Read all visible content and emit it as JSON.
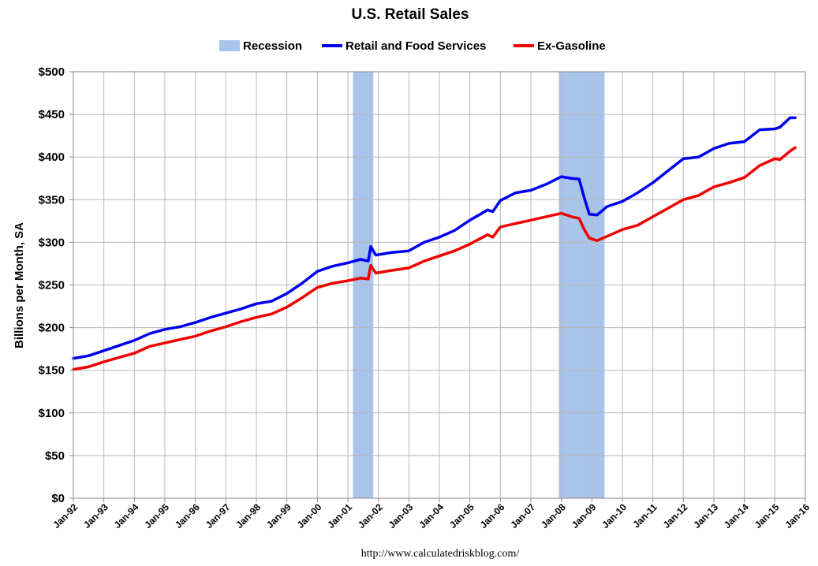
{
  "chart_data": {
    "type": "line",
    "title": "U.S. Retail Sales",
    "ylabel": "Billions per Month, SA",
    "xlabel": "",
    "source": "http://www.calculatedriskblog.com/",
    "ylim": [
      0,
      500
    ],
    "xlim": [
      "1992-01",
      "2016-01"
    ],
    "grid": true,
    "legend_position": "top",
    "y_ticks": [
      "$0",
      "$50",
      "$100",
      "$150",
      "$200",
      "$250",
      "$300",
      "$350",
      "$400",
      "$450",
      "$500"
    ],
    "x_ticks": [
      "Jan-92",
      "Jan-93",
      "Jan-94",
      "Jan-95",
      "Jan-96",
      "Jan-97",
      "Jan-98",
      "Jan-99",
      "Jan-00",
      "Jan-01",
      "Jan-02",
      "Jan-03",
      "Jan-04",
      "Jan-05",
      "Jan-06",
      "Jan-07",
      "Jan-08",
      "Jan-09",
      "Jan-10",
      "Jan-11",
      "Jan-12",
      "Jan-13",
      "Jan-14",
      "Jan-15",
      "Jan-16"
    ],
    "recessions": [
      {
        "start": "2001-03",
        "end": "2001-11"
      },
      {
        "start": "2007-12",
        "end": "2009-06"
      }
    ],
    "legend": [
      {
        "name": "Recession",
        "kind": "box",
        "color": "#a8c4ea"
      },
      {
        "name": "Retail and Food Services",
        "kind": "line",
        "color": "#0000ee"
      },
      {
        "name": "Ex-Gasoline",
        "kind": "line",
        "color": "#ee0000"
      }
    ],
    "series": [
      {
        "name": "Retail and Food Services",
        "color": "#0000ee",
        "points": [
          [
            "1992-01",
            164
          ],
          [
            "1992-07",
            167
          ],
          [
            "1993-01",
            173
          ],
          [
            "1993-07",
            179
          ],
          [
            "1994-01",
            185
          ],
          [
            "1994-07",
            193
          ],
          [
            "1995-01",
            198
          ],
          [
            "1995-07",
            201
          ],
          [
            "1996-01",
            206
          ],
          [
            "1996-07",
            212
          ],
          [
            "1997-01",
            217
          ],
          [
            "1997-07",
            222
          ],
          [
            "1998-01",
            228
          ],
          [
            "1998-07",
            231
          ],
          [
            "1999-01",
            240
          ],
          [
            "1999-07",
            252
          ],
          [
            "2000-01",
            266
          ],
          [
            "2000-07",
            272
          ],
          [
            "2001-01",
            276
          ],
          [
            "2001-06",
            280
          ],
          [
            "2001-09",
            278
          ],
          [
            "2001-10",
            295
          ],
          [
            "2001-12",
            285
          ],
          [
            "2002-06",
            288
          ],
          [
            "2003-01",
            290
          ],
          [
            "2003-07",
            300
          ],
          [
            "2004-01",
            306
          ],
          [
            "2004-07",
            314
          ],
          [
            "2005-01",
            326
          ],
          [
            "2005-08",
            338
          ],
          [
            "2005-10",
            336
          ],
          [
            "2006-01",
            349
          ],
          [
            "2006-07",
            358
          ],
          [
            "2007-01",
            361
          ],
          [
            "2007-07",
            368
          ],
          [
            "2008-01",
            377
          ],
          [
            "2008-05",
            375
          ],
          [
            "2008-08",
            374
          ],
          [
            "2008-10",
            352
          ],
          [
            "2008-12",
            333
          ],
          [
            "2009-03",
            332
          ],
          [
            "2009-07",
            342
          ],
          [
            "2010-01",
            348
          ],
          [
            "2010-07",
            358
          ],
          [
            "2011-01",
            370
          ],
          [
            "2011-07",
            384
          ],
          [
            "2012-01",
            398
          ],
          [
            "2012-07",
            400
          ],
          [
            "2013-01",
            410
          ],
          [
            "2013-07",
            416
          ],
          [
            "2014-01",
            418
          ],
          [
            "2014-07",
            432
          ],
          [
            "2015-01",
            433
          ],
          [
            "2015-03",
            435
          ],
          [
            "2015-07",
            446
          ],
          [
            "2015-09",
            446
          ]
        ]
      },
      {
        "name": "Ex-Gasoline",
        "color": "#ee0000",
        "points": [
          [
            "1992-01",
            151
          ],
          [
            "1992-07",
            154
          ],
          [
            "1993-01",
            160
          ],
          [
            "1993-07",
            165
          ],
          [
            "1994-01",
            170
          ],
          [
            "1994-07",
            178
          ],
          [
            "1995-01",
            182
          ],
          [
            "1995-07",
            186
          ],
          [
            "1996-01",
            190
          ],
          [
            "1996-07",
            196
          ],
          [
            "1997-01",
            201
          ],
          [
            "1997-07",
            207
          ],
          [
            "1998-01",
            212
          ],
          [
            "1998-07",
            216
          ],
          [
            "1999-01",
            224
          ],
          [
            "1999-07",
            235
          ],
          [
            "2000-01",
            247
          ],
          [
            "2000-07",
            252
          ],
          [
            "2001-01",
            255
          ],
          [
            "2001-06",
            258
          ],
          [
            "2001-09",
            257
          ],
          [
            "2001-10",
            273
          ],
          [
            "2001-12",
            264
          ],
          [
            "2002-06",
            267
          ],
          [
            "2003-01",
            270
          ],
          [
            "2003-07",
            278
          ],
          [
            "2004-01",
            284
          ],
          [
            "2004-07",
            290
          ],
          [
            "2005-01",
            298
          ],
          [
            "2005-08",
            309
          ],
          [
            "2005-10",
            306
          ],
          [
            "2006-01",
            318
          ],
          [
            "2006-07",
            322
          ],
          [
            "2007-01",
            326
          ],
          [
            "2007-07",
            330
          ],
          [
            "2008-01",
            334
          ],
          [
            "2008-05",
            330
          ],
          [
            "2008-08",
            328
          ],
          [
            "2008-10",
            315
          ],
          [
            "2008-12",
            305
          ],
          [
            "2009-03",
            302
          ],
          [
            "2009-07",
            307
          ],
          [
            "2010-01",
            315
          ],
          [
            "2010-07",
            320
          ],
          [
            "2011-01",
            330
          ],
          [
            "2011-07",
            340
          ],
          [
            "2012-01",
            350
          ],
          [
            "2012-07",
            355
          ],
          [
            "2013-01",
            365
          ],
          [
            "2013-07",
            370
          ],
          [
            "2014-01",
            376
          ],
          [
            "2014-07",
            390
          ],
          [
            "2015-01",
            398
          ],
          [
            "2015-03",
            397
          ],
          [
            "2015-07",
            407
          ],
          [
            "2015-09",
            411
          ]
        ]
      }
    ]
  }
}
